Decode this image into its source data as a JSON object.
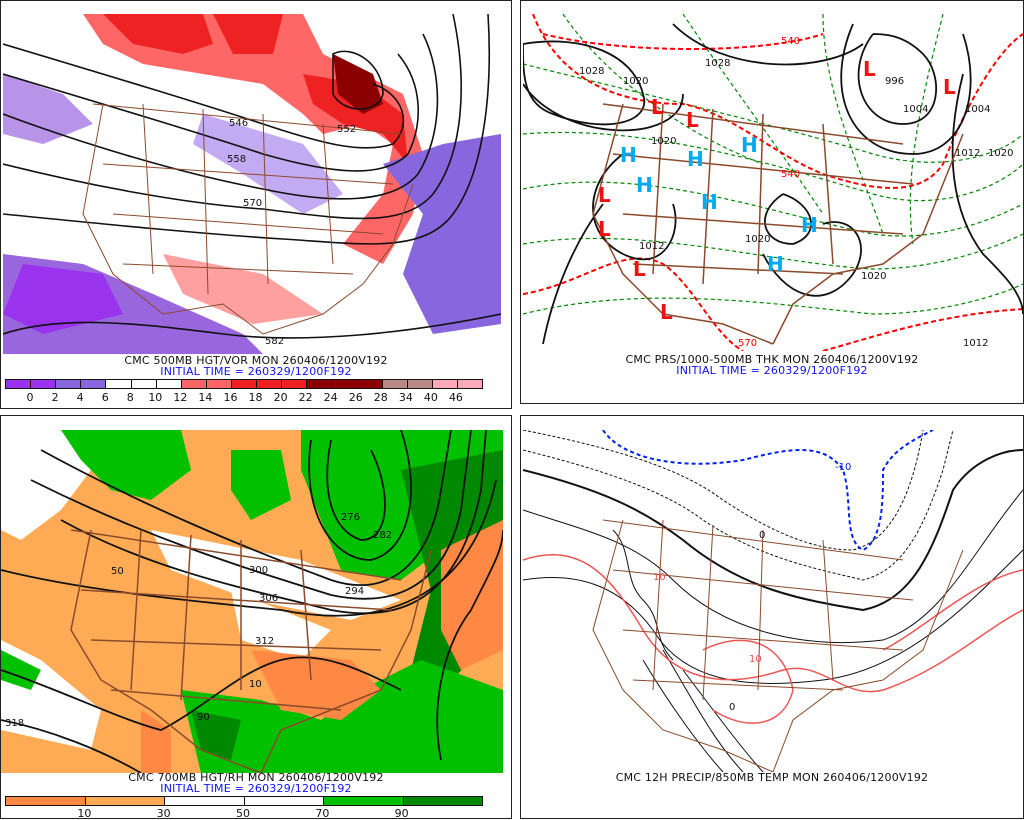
{
  "panels": [
    {
      "id": "500mb",
      "caption": "CMC 500MB HGT/VOR MON 260406/1200V192",
      "initial_time": "INITIAL TIME = 260329/1200F192",
      "colorbar": {
        "labels": [
          "0",
          "2",
          "4",
          "6",
          "8",
          "10",
          "12",
          "14",
          "16",
          "18",
          "20",
          "22",
          "24",
          "26",
          "28",
          "34",
          "40",
          "46"
        ],
        "colors": [
          "#9933ee",
          "#9933ee",
          "#8866dd",
          "#8866dd",
          "#ffffff",
          "#ffffff",
          "#ffffff",
          "#ff6666",
          "#ff6666",
          "#ee2222",
          "#ee2222",
          "#ee2222",
          "#8b0000",
          "#8b0000",
          "#8b0000",
          "#bb8888",
          "#bb8888",
          "#ffaabb",
          "#ffaabb"
        ]
      },
      "contour_labels": [
        "546",
        "552",
        "558",
        "570",
        "582"
      ]
    },
    {
      "id": "mslp-thickness",
      "caption": "CMC PRS/1000-500MB THK MON 260406/1200V192",
      "initial_time": "INITIAL TIME = 260329/1200F192",
      "contour_labels": [
        "1028",
        "1020",
        "1028",
        "996",
        "1004",
        "1004",
        "1012",
        "1020",
        "1020",
        "1012",
        "1020",
        "1020",
        "1012",
        "540",
        "540",
        "570"
      ],
      "pressure_centers": {
        "high": "H",
        "low": "L"
      }
    },
    {
      "id": "700mb",
      "caption": "CMC 700MB HGT/RH MON 260406/1200V192",
      "initial_time": "INITIAL TIME = 260329/1200F192",
      "colorbar": {
        "labels": [
          "10",
          "30",
          "50",
          "70",
          "90"
        ],
        "colors": [
          "#ff8844",
          "#ffaa55",
          "#ffffff",
          "#ffffff",
          "#00c000",
          "#008800"
        ]
      },
      "contour_labels": [
        "276",
        "282",
        "294",
        "300",
        "306",
        "312",
        "318",
        "10",
        "50",
        "90"
      ]
    },
    {
      "id": "precip-850",
      "caption": "CMC 12H PRECIP/850MB TEMP MON 260406/1200V192",
      "contour_labels": [
        "0",
        "-10",
        "10",
        "10",
        "0"
      ]
    }
  ],
  "colors": {
    "borders": "#8b4a2b",
    "contour": "#111111",
    "thickness_warm": "#ff0000",
    "thickness": "#008800",
    "high": "#00aaee",
    "low": "#ee1111",
    "caption_blue": "#1010ff"
  }
}
